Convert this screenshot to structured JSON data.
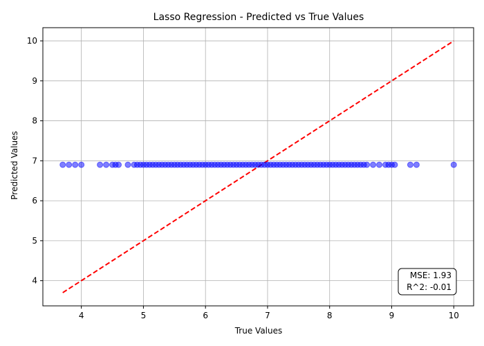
{
  "chart_data": {
    "type": "scatter",
    "title": "Lasso Regression - Predicted vs True Values",
    "xlabel": "True Values",
    "ylabel": "Predicted Values",
    "xlim": [
      3.38,
      10.32
    ],
    "ylim": [
      3.37,
      10.33
    ],
    "xticks": [
      4,
      5,
      6,
      7,
      8,
      9,
      10
    ],
    "yticks": [
      4,
      5,
      6,
      7,
      8,
      9,
      10
    ],
    "grid": true,
    "series": [
      {
        "kind": "points",
        "color": "#0000ff",
        "x": [
          3.7,
          3.8,
          3.9,
          4.0,
          4.3,
          4.4,
          4.5,
          4.55,
          4.6,
          4.75,
          4.85,
          4.9,
          4.95,
          5.0,
          5.05,
          5.1,
          5.15,
          5.2,
          5.25,
          5.3,
          5.35,
          5.4,
          5.45,
          5.5,
          5.55,
          5.6,
          5.65,
          5.7,
          5.75,
          5.8,
          5.85,
          5.9,
          5.95,
          6.0,
          6.05,
          6.1,
          6.15,
          6.2,
          6.25,
          6.3,
          6.35,
          6.4,
          6.45,
          6.5,
          6.55,
          6.6,
          6.65,
          6.7,
          6.75,
          6.8,
          6.85,
          6.9,
          6.95,
          7.0,
          7.05,
          7.1,
          7.15,
          7.2,
          7.25,
          7.3,
          7.35,
          7.4,
          7.45,
          7.5,
          7.55,
          7.6,
          7.65,
          7.7,
          7.75,
          7.8,
          7.85,
          7.9,
          7.95,
          8.0,
          8.05,
          8.1,
          8.15,
          8.2,
          8.25,
          8.3,
          8.35,
          8.4,
          8.45,
          8.5,
          8.55,
          8.6,
          8.7,
          8.8,
          8.9,
          8.95,
          9.0,
          9.05,
          9.3,
          9.4,
          10.0
        ],
        "y": [
          6.9,
          6.9,
          6.9,
          6.9,
          6.9,
          6.9,
          6.9,
          6.9,
          6.9,
          6.9,
          6.9,
          6.9,
          6.9,
          6.9,
          6.9,
          6.9,
          6.9,
          6.9,
          6.9,
          6.9,
          6.9,
          6.9,
          6.9,
          6.9,
          6.9,
          6.9,
          6.9,
          6.9,
          6.9,
          6.9,
          6.9,
          6.9,
          6.9,
          6.9,
          6.9,
          6.9,
          6.9,
          6.9,
          6.9,
          6.9,
          6.9,
          6.9,
          6.9,
          6.9,
          6.9,
          6.9,
          6.9,
          6.9,
          6.9,
          6.9,
          6.9,
          6.9,
          6.9,
          6.9,
          6.9,
          6.9,
          6.9,
          6.9,
          6.9,
          6.9,
          6.9,
          6.9,
          6.9,
          6.9,
          6.9,
          6.9,
          6.9,
          6.9,
          6.9,
          6.9,
          6.9,
          6.9,
          6.9,
          6.9,
          6.9,
          6.9,
          6.9,
          6.9,
          6.9,
          6.9,
          6.9,
          6.9,
          6.9,
          6.9,
          6.9,
          6.9,
          6.9,
          6.9,
          6.9,
          6.9,
          6.9,
          6.9,
          6.9,
          6.9,
          6.9
        ]
      },
      {
        "kind": "line",
        "color": "#ff0000",
        "style": "dashed",
        "x": [
          3.7,
          10.0
        ],
        "y": [
          3.7,
          10.0
        ]
      }
    ],
    "stats": {
      "mse": "MSE: 1.93",
      "r2": "R^2: -0.01"
    }
  }
}
